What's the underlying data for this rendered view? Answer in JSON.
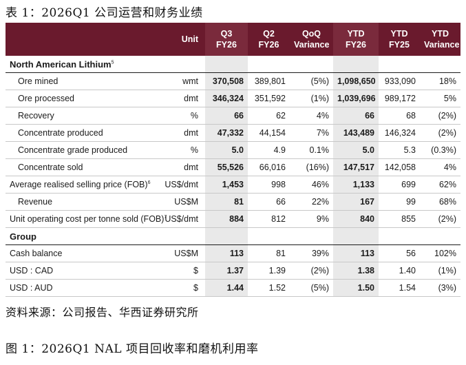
{
  "caption_top": "表 1：2026Q1 公司运营和财务业绩",
  "caption_source": "资料来源：公司报告、华西证券研究所",
  "caption_figure": "图 1：2026Q1 NAL 项目回收率和磨机利用率",
  "table": {
    "headers": {
      "label": "",
      "unit": "Unit",
      "q3": [
        "Q3",
        "FY26"
      ],
      "q2": [
        "Q2",
        "FY26"
      ],
      "qoq": [
        "QoQ",
        "Variance"
      ],
      "ytd26": [
        "YTD",
        "FY26"
      ],
      "ytd25": [
        "YTD",
        "FY25"
      ],
      "ytdvar": [
        "YTD",
        "Variance"
      ]
    },
    "sections": [
      {
        "title": "North American Lithium",
        "title_sup": "5",
        "rows": [
          {
            "label": "Ore mined",
            "sup": "",
            "indent": true,
            "unit": "wmt",
            "q3": "370,508",
            "q2": "389,801",
            "qoq": "(5%)",
            "ytd26": "1,098,650",
            "ytd25": "933,090",
            "ytdvar": "18%"
          },
          {
            "label": "Ore processed",
            "sup": "",
            "indent": true,
            "unit": "dmt",
            "q3": "346,324",
            "q2": "351,592",
            "qoq": "(1%)",
            "ytd26": "1,039,696",
            "ytd25": "989,172",
            "ytdvar": "5%"
          },
          {
            "label": "Recovery",
            "sup": "",
            "indent": true,
            "unit": "%",
            "q3": "66",
            "q2": "62",
            "qoq": "4%",
            "ytd26": "66",
            "ytd25": "68",
            "ytdvar": "(2%)"
          },
          {
            "label": "Concentrate produced",
            "sup": "",
            "indent": true,
            "unit": "dmt",
            "q3": "47,332",
            "q2": "44,154",
            "qoq": "7%",
            "ytd26": "143,489",
            "ytd25": "146,324",
            "ytdvar": "(2%)"
          },
          {
            "label": "Concentrate grade produced",
            "sup": "",
            "indent": true,
            "unit": "%",
            "q3": "5.0",
            "q2": "4.9",
            "qoq": "0.1%",
            "ytd26": "5.0",
            "ytd25": "5.3",
            "ytdvar": "(0.3%)"
          },
          {
            "label": "Concentrate sold",
            "sup": "",
            "indent": true,
            "unit": "dmt",
            "q3": "55,526",
            "q2": "66,016",
            "qoq": "(16%)",
            "ytd26": "147,517",
            "ytd25": "142,058",
            "ytdvar": "4%"
          },
          {
            "label": "Average realised selling price (FOB)",
            "sup": "6",
            "indent": false,
            "unit": "US$/dmt",
            "q3": "1,453",
            "q2": "998",
            "qoq": "46%",
            "ytd26": "1,133",
            "ytd25": "699",
            "ytdvar": "62%"
          },
          {
            "label": "Revenue",
            "sup": "",
            "indent": true,
            "unit": "US$M",
            "q3": "81",
            "q2": "66",
            "qoq": "22%",
            "ytd26": "167",
            "ytd25": "99",
            "ytdvar": "68%"
          },
          {
            "label": "Unit operating cost per tonne sold  (FOB)",
            "sup": "7",
            "indent": false,
            "unit": "US$/dmt",
            "q3": "884",
            "q2": "812",
            "qoq": "9%",
            "ytd26": "840",
            "ytd25": "855",
            "ytdvar": "(2%)"
          }
        ]
      },
      {
        "title": "Group",
        "title_sup": "",
        "rows": [
          {
            "label": "Cash balance",
            "sup": "",
            "indent": false,
            "unit": "US$M",
            "q3": "113",
            "q2": "81",
            "qoq": "39%",
            "ytd26": "113",
            "ytd25": "56",
            "ytdvar": "102%"
          },
          {
            "label": "USD : CAD",
            "sup": "",
            "indent": false,
            "unit": "$",
            "q3": "1.37",
            "q2": "1.39",
            "qoq": "(2%)",
            "ytd26": "1.38",
            "ytd25": "1.40",
            "ytdvar": "(1%)"
          },
          {
            "label": "USD : AUD",
            "sup": "",
            "indent": false,
            "unit": "$",
            "q3": "1.44",
            "q2": "1.52",
            "qoq": "(5%)",
            "ytd26": "1.50",
            "ytd25": "1.54",
            "ytdvar": "(3%)"
          }
        ]
      }
    ]
  }
}
